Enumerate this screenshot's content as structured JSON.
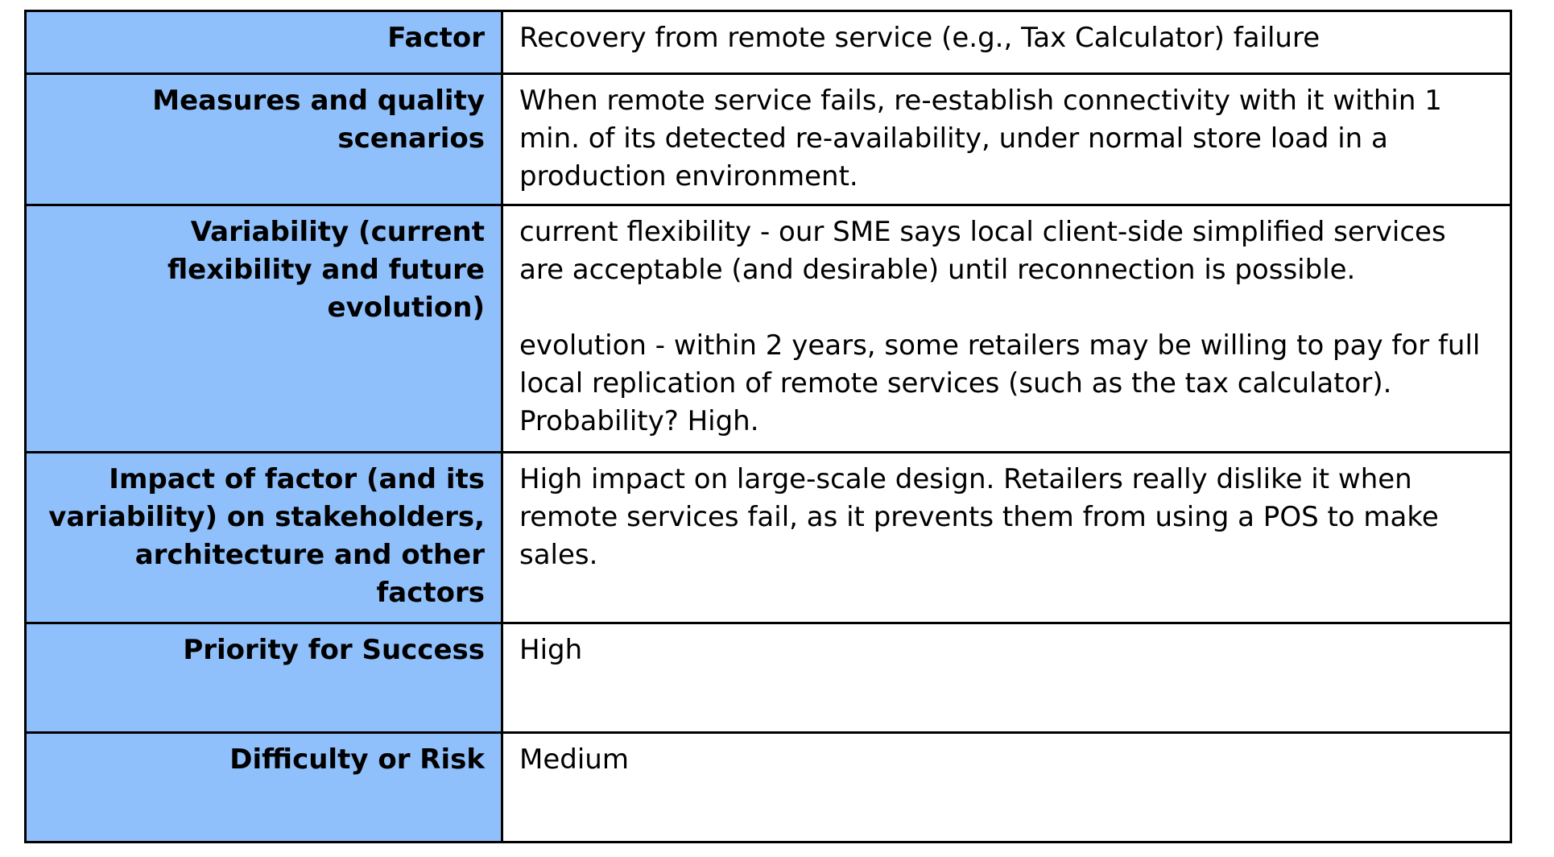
{
  "table": {
    "rows": [
      {
        "label": "Factor",
        "value": [
          "Recovery from remote service (e.g., Tax Calculator) failure"
        ]
      },
      {
        "label": "Measures and quality scenarios",
        "value": [
          "When remote service fails, re-establish connectivity with it within 1 min. of its detected re-availability, under normal store load in a production environment."
        ]
      },
      {
        "label": "Variability (current flexibility and future evolution)",
        "value": [
          "current flexibility - our SME says local client-side simplified services are acceptable (and desirable) until reconnection is possible.",
          "evolution - within 2 years, some retailers may be willing to pay for full local replication of remote services (such as the tax calculator). Probability? High."
        ]
      },
      {
        "label": "Impact of factor (and its variability) on stakeholders, architecture and other factors",
        "value": [
          "High impact on large-scale design. Retailers really dislike it when remote services fail, as it prevents them from using a POS to make sales."
        ]
      },
      {
        "label": "Priority for Success",
        "value": [
          "High"
        ]
      },
      {
        "label": "Difficulty or Risk",
        "value": [
          "Medium"
        ]
      }
    ]
  },
  "colors": {
    "label_background": "#8fc0fb",
    "value_background": "#ffffff",
    "border": "#000000"
  }
}
